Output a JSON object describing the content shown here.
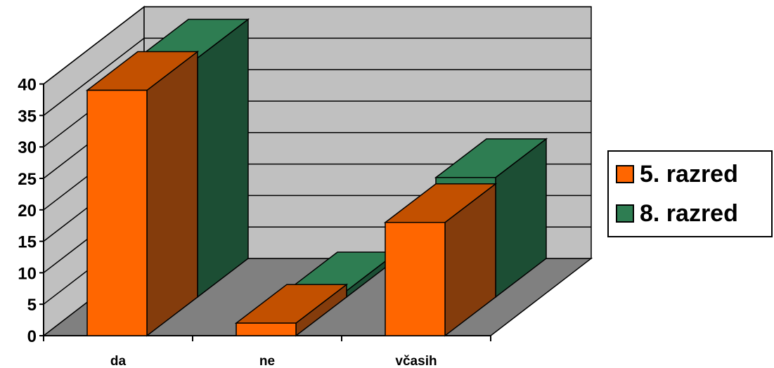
{
  "chart_data": {
    "type": "bar",
    "style": "3d-clustered-column",
    "categories": [
      "da",
      "ne",
      "včasih"
    ],
    "series": [
      {
        "name": "5. razred",
        "values": [
          39,
          2,
          18
        ],
        "color": "#FF6600",
        "side_color": "#843C0C",
        "top_color": "#C25000"
      },
      {
        "name": "8. razred",
        "values": [
          38,
          1,
          19
        ],
        "color": "#2E7D52",
        "side_color": "#1C4E34",
        "top_color": "#2E7D52"
      }
    ],
    "y_ticks": [
      "0",
      "5",
      "10",
      "15",
      "20",
      "25",
      "30",
      "35",
      "40"
    ],
    "ylim": [
      0,
      40
    ],
    "grid": true,
    "legend_position": "right",
    "wall_color": "#C0C0C0",
    "floor_color": "#808080"
  }
}
